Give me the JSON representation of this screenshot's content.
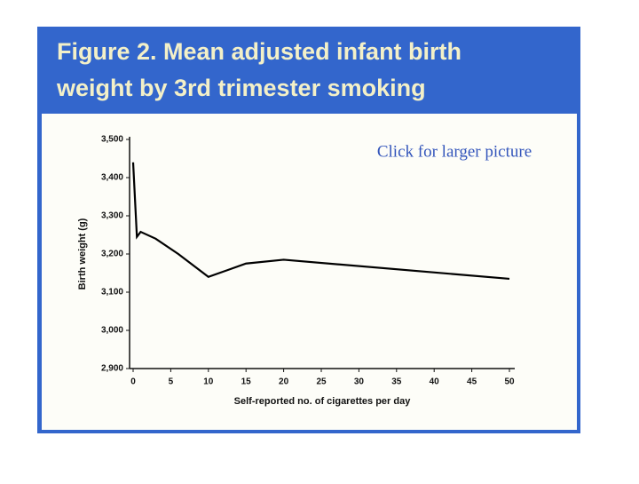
{
  "title_lines": [
    "Figure 2. Mean adjusted infant birth",
    "weight by 3rd trimester smoking"
  ],
  "link": "Click for larger picture",
  "chart_data": {
    "type": "line",
    "x_label": "Self-reported no. of cigarettes per day",
    "y_label": "Birth weight (g)",
    "x": [
      0,
      0.5,
      1,
      3,
      6,
      10,
      15,
      20,
      50
    ],
    "values": [
      3440,
      3245,
      3258,
      3240,
      3200,
      3140,
      3175,
      3185,
      3135
    ],
    "color": "#000000",
    "xlim": [
      0,
      50
    ],
    "ylim": [
      2900,
      3500
    ],
    "xticks": [
      0,
      5,
      10,
      15,
      20,
      25,
      30,
      35,
      40,
      45,
      50
    ],
    "yticks": [
      {
        "value": 2900,
        "label": "2,900"
      },
      {
        "value": 3000,
        "label": "3,000"
      },
      {
        "value": 3100,
        "label": "3,100"
      },
      {
        "value": 3200,
        "label": "3,200"
      },
      {
        "value": 3300,
        "label": "3,300"
      },
      {
        "value": 3400,
        "label": "3,400"
      },
      {
        "value": 3500,
        "label": "3,500"
      }
    ]
  }
}
